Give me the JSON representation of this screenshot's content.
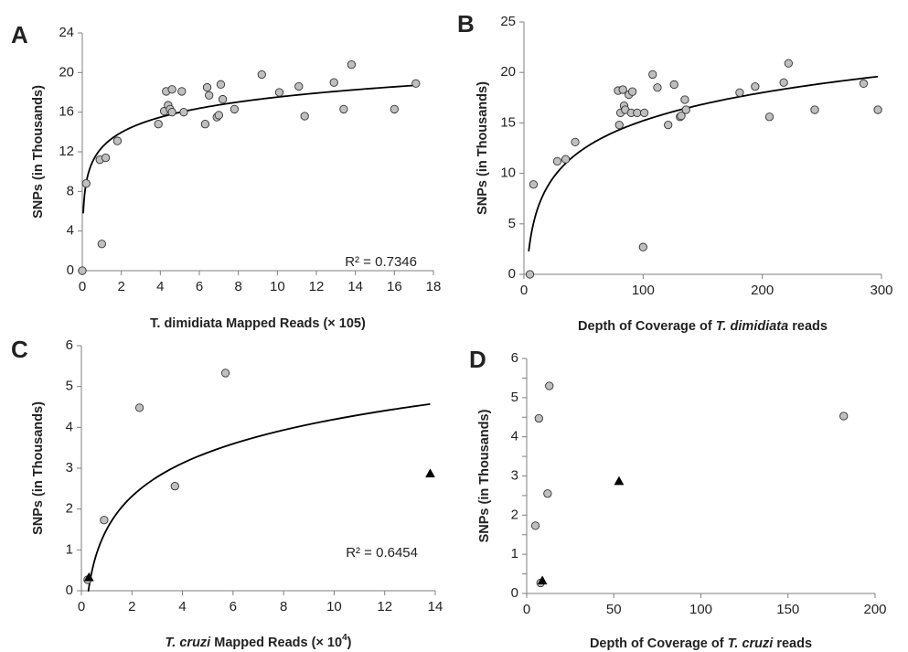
{
  "chart_data": [
    {
      "panel": "A",
      "type": "scatter",
      "xlabel": "T. dimidiata Mapped Reads (× 105)",
      "ylabel": "SNPs (in Thousands)",
      "xlim": [
        0,
        18
      ],
      "ylim": [
        0,
        24
      ],
      "xticks": [
        0,
        2,
        4,
        6,
        8,
        10,
        12,
        14,
        16,
        18
      ],
      "yticks": [
        0,
        4,
        8,
        12,
        16,
        20,
        24
      ],
      "r2_label": "R² = 0.7346",
      "trendline": {
        "type": "log",
        "a": 12.42,
        "b": 2.215,
        "x_start": 0.05,
        "x_end": 17.2
      },
      "series": [
        {
          "marker": "circle",
          "color": "#bfbfbf",
          "x": [
            0,
            0.2,
            0.9,
            1.0,
            1.2,
            1.8,
            3.9,
            4.2,
            4.3,
            4.4,
            4.5,
            4.6,
            4.6,
            5.1,
            5.2,
            6.3,
            6.4,
            6.5,
            6.9,
            7.0,
            7.1,
            7.2,
            7.8,
            9.2,
            10.1,
            11.1,
            11.4,
            12.9,
            13.4,
            13.8,
            16.0,
            17.1
          ],
          "y": [
            0,
            8.8,
            11.2,
            2.7,
            11.4,
            13.1,
            14.8,
            16.1,
            18.1,
            16.7,
            16.3,
            18.3,
            16.0,
            18.1,
            16.0,
            14.8,
            18.5,
            17.7,
            15.5,
            15.7,
            18.8,
            17.3,
            16.3,
            19.8,
            18.0,
            18.6,
            15.6,
            19.0,
            16.3,
            20.8,
            16.3,
            18.9
          ]
        }
      ]
    },
    {
      "panel": "B",
      "type": "scatter",
      "xlabel": "Depth of Coverage of T. dimidiata reads",
      "xlabel_parts": [
        "Depth of Coverage of ",
        "T. dimidiata",
        " reads"
      ],
      "ylabel": "SNPs (in Thousands)",
      "xlim": [
        0,
        300
      ],
      "ylim": [
        0,
        25
      ],
      "xticks": [
        0,
        100,
        200,
        300
      ],
      "yticks": [
        0,
        5,
        10,
        15,
        20,
        25
      ],
      "trendline": {
        "type": "log",
        "a": -3.3,
        "b": 4.02,
        "x_start": 4,
        "x_end": 297
      },
      "series": [
        {
          "marker": "circle",
          "color": "#bfbfbf",
          "x": [
            5,
            8,
            28,
            35,
            43,
            79,
            80,
            81,
            83,
            84,
            85,
            88,
            90,
            91,
            95,
            100,
            101,
            108,
            112,
            121,
            126,
            131,
            132,
            135,
            136,
            181,
            194,
            206,
            218,
            222,
            244,
            285,
            297
          ],
          "y": [
            0,
            8.9,
            11.2,
            11.4,
            13.1,
            18.2,
            14.8,
            16.0,
            18.3,
            16.7,
            16.3,
            17.8,
            16.0,
            18.1,
            16.0,
            2.7,
            16.0,
            19.8,
            18.5,
            14.8,
            18.8,
            15.6,
            15.7,
            17.3,
            16.3,
            18.0,
            18.6,
            15.6,
            19.0,
            20.9,
            16.3,
            18.9,
            16.3
          ]
        }
      ]
    },
    {
      "panel": "C",
      "type": "scatter",
      "xlabel": "T. cruzi Mapped Reads (× 10⁴)",
      "xlabel_parts": [
        "T. cruzi",
        " Mapped Reads (× 10",
        "4",
        ")"
      ],
      "ylabel": "SNPs  (in Thousands)",
      "xlim": [
        0,
        14
      ],
      "ylim": [
        0,
        6
      ],
      "xticks": [
        0,
        2,
        4,
        6,
        8,
        10,
        12,
        14
      ],
      "yticks": [
        0,
        1,
        2,
        3,
        4,
        5,
        6
      ],
      "r2_label": "R² = 0.6454",
      "trendline": {
        "type": "log",
        "a": 1.5,
        "b": 1.17,
        "x_start": 0.25,
        "x_end": 13.8
      },
      "series": [
        {
          "marker": "circle",
          "color": "#bfbfbf",
          "x": [
            0.25,
            0.9,
            2.3,
            3.7,
            5.7
          ],
          "y": [
            0.27,
            1.73,
            4.48,
            2.56,
            5.33
          ]
        },
        {
          "marker": "triangle",
          "color": "#000000",
          "x": [
            0.3,
            13.8
          ],
          "y": [
            0.33,
            2.87
          ]
        }
      ]
    },
    {
      "panel": "D",
      "type": "scatter",
      "xlabel": "Depth of Coverage of T. cruzi reads",
      "xlabel_parts": [
        "Depth of Coverage of ",
        "T. cruzi",
        " reads"
      ],
      "ylabel": "SNPs  (in Thousands)",
      "xlim": [
        0,
        200
      ],
      "ylim": [
        0,
        6
      ],
      "xticks": [
        0,
        50,
        100,
        150,
        200
      ],
      "yticks": [
        0,
        0.5,
        1,
        1.5,
        2,
        2.5,
        3,
        3.5,
        4,
        4.5,
        5,
        5.5,
        6
      ],
      "ytick_labels": [
        "0",
        "",
        "1",
        "",
        "2",
        "",
        "3",
        "",
        "4",
        "",
        "5",
        "",
        "6"
      ],
      "series": [
        {
          "marker": "circle",
          "color": "#bfbfbf",
          "x": [
            5,
            7,
            8,
            12,
            13,
            182
          ],
          "y": [
            1.73,
            4.47,
            0.27,
            2.55,
            5.3,
            4.53
          ]
        },
        {
          "marker": "triangle",
          "color": "#000000",
          "x": [
            9,
            53
          ],
          "y": [
            0.33,
            2.87
          ]
        }
      ]
    }
  ]
}
